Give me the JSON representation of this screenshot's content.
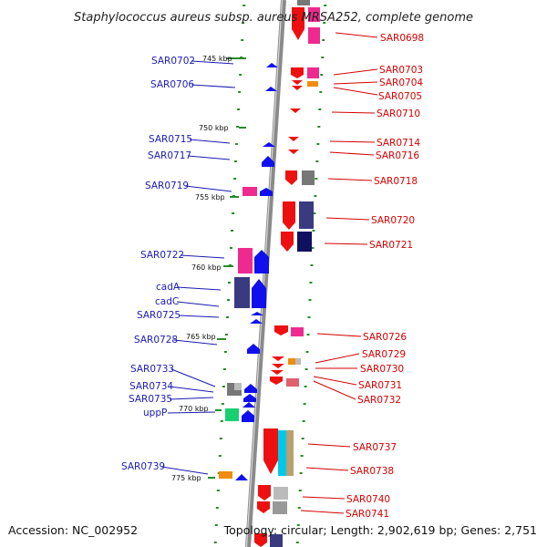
{
  "title": "Staphylococcus aureus subsp. aureus MRSA252, complete genome",
  "accession": "Accession: NC_002952",
  "topology": "Topology: circular; Length: 2,902,619 bp; Genes: 2,751",
  "colors": {
    "left_label": "#1a1ab4",
    "right_label": "#d40000",
    "backbone": "#8a8a8a",
    "tick": "#2a8a2a",
    "forward_arrow": "#1010ee",
    "reverse_arrow": "#ee1010",
    "pink_box": "#ee2a90",
    "navy_box": "#3a3a80",
    "gray_box": "#777777",
    "orange_box": "#f08c10",
    "green_box": "#18d070",
    "cyan_box": "#00c8e8",
    "tan_box": "#b8a070"
  },
  "kbp_marks": [
    "745 kbp",
    "750 kbp",
    "755 kbp",
    "760 kbp",
    "765 kbp",
    "770 kbp",
    "775 kbp"
  ],
  "left_labels": [
    "SAR0702",
    "SAR0706",
    "SAR0715",
    "SAR0717",
    "SAR0719",
    "SAR0722",
    "cadA",
    "cadC",
    "SAR0725",
    "SAR0728",
    "SAR0733",
    "SAR0734",
    "SAR0735",
    "uppP",
    "SAR0739"
  ],
  "right_labels": [
    "SAR0698",
    "SAR0703",
    "SAR0704",
    "SAR0705",
    "SAR0710",
    "SAR0714",
    "SAR0716",
    "SAR0718",
    "SAR0720",
    "SAR0721",
    "SAR0726",
    "SAR0729",
    "SAR0730",
    "SAR0731",
    "SAR0732",
    "SAR0737",
    "SAR0738",
    "SAR0740",
    "SAR0741"
  ]
}
